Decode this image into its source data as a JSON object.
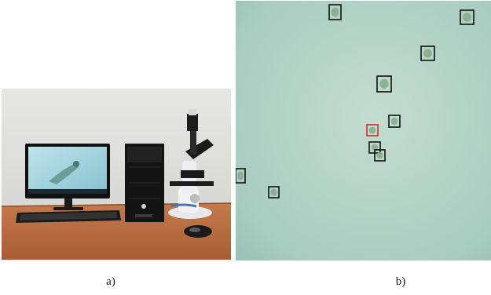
{
  "figure": {
    "panel_a": {
      "caption": "a)",
      "scene": "microscope-computer-workstation"
    },
    "panel_b": {
      "caption": "b)",
      "scene": "microscope-field-of-view-with-detection-boxes",
      "detections": [
        {
          "id": 1,
          "label_color": "#111111"
        },
        {
          "id": 2,
          "label_color": "#111111"
        },
        {
          "id": 3,
          "label_color": "#111111"
        },
        {
          "id": 4,
          "label_color": "#111111"
        },
        {
          "id": 5,
          "label_color": "#111111"
        },
        {
          "id": 6,
          "label_color": "#d62a2a"
        },
        {
          "id": 7,
          "label_color": "#111111"
        },
        {
          "id": 8,
          "label_color": "#111111"
        },
        {
          "id": 9,
          "label_color": "#111111"
        },
        {
          "id": 10,
          "label_color": "#111111"
        }
      ]
    }
  }
}
